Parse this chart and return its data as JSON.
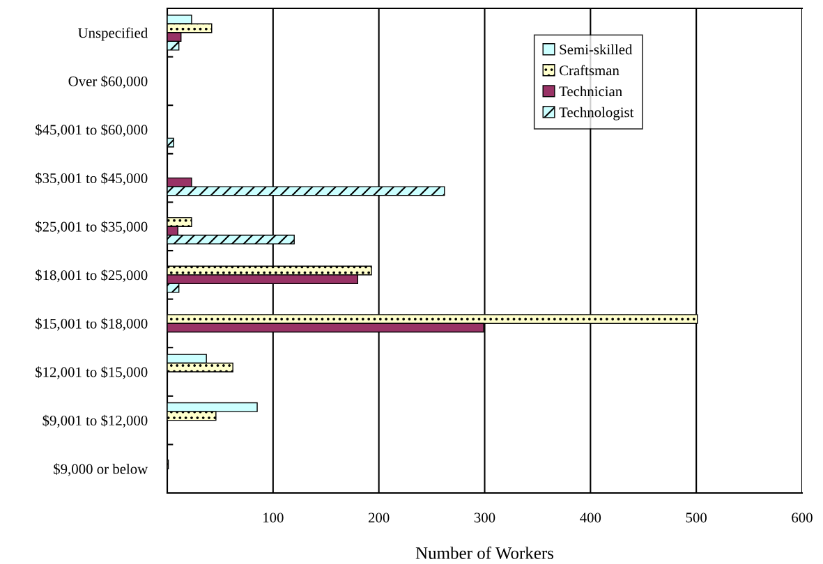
{
  "chart_data": {
    "type": "bar",
    "orientation": "horizontal",
    "xlabel": "Number of Workers",
    "categories": [
      "Unspecified",
      "Over $60,000",
      "$45,001 to $60,000",
      "$35,001 to $45,000",
      "$25,001 to $35,000",
      "$18,001 to $25,000",
      "$15,001 to $18,000",
      "$12,001 to $15,000",
      "$9,001 to $12,000",
      "$9,000 or below"
    ],
    "series": [
      {
        "name": "Semi-skilled",
        "color": "#ccffff",
        "values": [
          23,
          null,
          null,
          null,
          null,
          null,
          null,
          37,
          85,
          null
        ]
      },
      {
        "name": "Craftsman",
        "color": "#ffffcc",
        "values": [
          42,
          null,
          null,
          null,
          23,
          193,
          501,
          62,
          46,
          1
        ]
      },
      {
        "name": "Technician",
        "color": "#993366",
        "values": [
          13,
          null,
          null,
          23,
          10,
          180,
          299,
          null,
          null,
          null
        ]
      },
      {
        "name": "Technologist",
        "color": "#ccffff",
        "values": [
          11,
          null,
          6,
          262,
          120,
          11,
          null,
          null,
          null,
          null
        ]
      }
    ],
    "xlim": [
      0,
      600
    ],
    "xticks": [
      {
        "value": 0,
        "label": null
      },
      100,
      200,
      300,
      400,
      500,
      600
    ],
    "grid": "x",
    "legend": "top right"
  }
}
